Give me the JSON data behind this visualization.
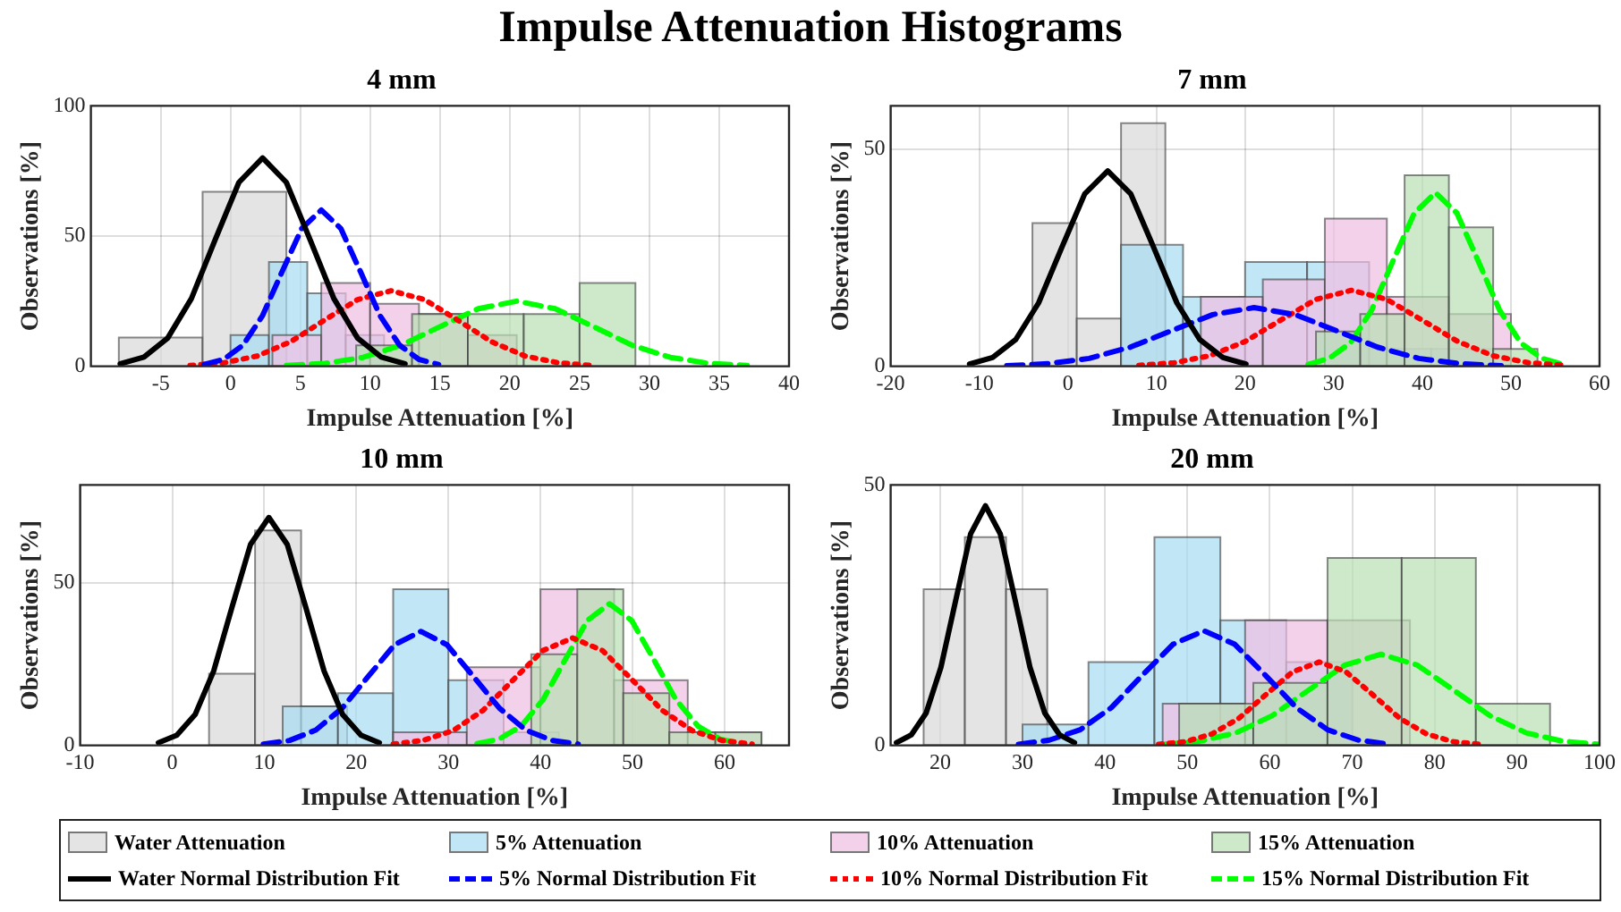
{
  "chart_data": [
    {
      "type": "histogram",
      "title": "4 mm",
      "xlabel": "Impulse Attenuation [%]",
      "ylabel": "Observations [%]",
      "annotations": [
        "Impulse Attenuation Histograms"
      ],
      "legend": "bottom",
      "grid": true,
      "xlim": [
        -10,
        40
      ],
      "xticks": [
        -5,
        0,
        5,
        10,
        15,
        20,
        25,
        30,
        35,
        40
      ],
      "ylim": [
        0,
        100
      ],
      "yticks": [
        0,
        50,
        100
      ],
      "series": [
        {
          "name": "Water Attenuation",
          "type": "histogram",
          "color": "#d9d9d9",
          "bins": [
            -8,
            -2,
            4
          ],
          "values": [
            11,
            67
          ]
        },
        {
          "name": "5% Attenuation",
          "type": "histogram",
          "color": "#a6dcf2",
          "bins": [
            0,
            2.75,
            5.5,
            8.25,
            11
          ],
          "values": [
            12,
            40,
            28,
            12
          ]
        },
        {
          "name": "10% Attenuation",
          "type": "histogram",
          "color": "#f0bde3",
          "bins": [
            3,
            6.5,
            10,
            13.5,
            17,
            20.5
          ],
          "values": [
            12,
            32,
            24,
            20,
            12
          ]
        },
        {
          "name": "15% Attenuation",
          "type": "histogram",
          "color": "#b8e0b4",
          "bins": [
            9,
            13,
            17,
            21,
            25,
            29
          ],
          "values": [
            8,
            20,
            20,
            20,
            32
          ]
        },
        {
          "name": "Water Normal Distribution Fit",
          "type": "line",
          "color": "#000000",
          "line_style": "solid",
          "x": [
            -7.9,
            -6.2,
            -4.5,
            -2.8,
            -1.1,
            0.6,
            2.3,
            4,
            5.7,
            7.4,
            9.1,
            10.8,
            12.5
          ],
          "values": [
            0.9,
            3.5,
            10.8,
            26,
            48.6,
            70.6,
            80,
            70.6,
            48.6,
            26,
            10.8,
            3.5,
            0.9
          ]
        },
        {
          "name": "5% Normal Distribution Fit",
          "type": "line",
          "color": "#0000ff",
          "line_style": "dashed",
          "x": [
            -1.9,
            -0.5,
            0.9,
            2.3,
            3.7,
            5.1,
            6.5,
            7.9,
            9.3,
            10.7,
            12.1,
            13.5,
            14.9
          ],
          "values": [
            0.7,
            2.6,
            8.1,
            19.5,
            36.4,
            52.9,
            60,
            52.9,
            36.4,
            19.5,
            8.1,
            2.6,
            0.7
          ]
        },
        {
          "name": "10% Normal Distribution Fit",
          "type": "line",
          "color": "#ff0000",
          "line_style": "dotted",
          "x": [
            -2.9,
            -0.5,
            1.9,
            4.3,
            6.7,
            9.1,
            11.5,
            13.9,
            16.3,
            18.7,
            21.1,
            23.5,
            25.9
          ],
          "values": [
            0.3,
            1.3,
            3.9,
            9.4,
            17.6,
            25.6,
            29,
            25.6,
            17.6,
            9.4,
            3.9,
            1.3,
            0.3
          ]
        },
        {
          "name": "15% Normal Distribution Fit",
          "type": "line",
          "color": "#00ff00",
          "line_style": "dashed",
          "x": [
            4,
            6.75,
            9.5,
            12.25,
            15,
            17.75,
            20.5,
            23.25,
            26,
            28.75,
            31.5,
            34.25,
            37
          ],
          "values": [
            0.3,
            1.1,
            3.4,
            8.1,
            15.2,
            22.1,
            25,
            22.1,
            15.2,
            8.1,
            3.4,
            1.1,
            0.3
          ]
        }
      ]
    },
    {
      "type": "histogram",
      "title": "7 mm",
      "xlabel": "Impulse Attenuation [%]",
      "ylabel": "Observations [%]",
      "grid": true,
      "xlim": [
        -20,
        60
      ],
      "xticks": [
        -20,
        -10,
        0,
        10,
        20,
        30,
        40,
        50,
        60
      ],
      "ylim": [
        0,
        60
      ],
      "yticks": [
        0,
        50
      ],
      "series": [
        {
          "type": "histogram",
          "color": "#d9d9d9",
          "bins": [
            -4,
            1,
            6,
            11
          ],
          "values": [
            33,
            11,
            56
          ]
        },
        {
          "type": "histogram",
          "color": "#a6dcf2",
          "bins": [
            6,
            13,
            20,
            27,
            34,
            41,
            48
          ],
          "values": [
            28,
            16,
            24,
            24,
            4,
            4
          ]
        },
        {
          "type": "histogram",
          "color": "#f0bde3",
          "bins": [
            15,
            22,
            29,
            36,
            43,
            50
          ],
          "values": [
            16,
            20,
            34,
            16,
            12
          ]
        },
        {
          "type": "histogram",
          "color": "#b8e0b4",
          "bins": [
            28,
            33,
            38,
            43,
            48,
            53
          ],
          "values": [
            8,
            12,
            44,
            32,
            4
          ]
        },
        {
          "type": "line",
          "color": "#000000",
          "line_style": "solid",
          "x": [
            -11.1,
            -8.5,
            -5.9,
            -3.3,
            -0.7,
            1.9,
            4.5,
            7.1,
            9.7,
            12.3,
            14.9,
            17.5,
            20.1
          ],
          "values": [
            0.5,
            2,
            6.1,
            14.6,
            27.3,
            39.7,
            45,
            39.7,
            27.3,
            14.6,
            6.1,
            2,
            0.5
          ]
        },
        {
          "type": "line",
          "color": "#0000ff",
          "line_style": "dashed",
          "x": [
            -6.9,
            -2.25,
            2.4,
            7.05,
            11.7,
            16.35,
            21,
            25.65,
            30.3,
            34.95,
            39.6,
            44.25,
            48.9
          ],
          "values": [
            0.1,
            0.6,
            1.8,
            4.4,
            8.2,
            11.9,
            13.5,
            11.9,
            8.2,
            4.4,
            1.8,
            0.6,
            0.1
          ]
        },
        {
          "type": "line",
          "color": "#ff0000",
          "line_style": "dotted",
          "x": [
            8,
            12,
            16,
            20,
            24,
            28,
            32,
            36,
            40,
            44,
            48,
            52,
            56
          ],
          "values": [
            0.2,
            0.8,
            2.4,
            5.7,
            10.6,
            15.4,
            17.5,
            15.4,
            10.6,
            5.7,
            2.4,
            0.8,
            0.2
          ]
        },
        {
          "type": "line",
          "color": "#00ff00",
          "line_style": "dashed",
          "x": [
            27.1,
            29.5,
            31.9,
            34.3,
            36.7,
            39.1,
            41.5,
            43.9,
            46.3,
            48.7,
            51.1,
            53.5,
            55.9
          ],
          "values": [
            0.4,
            1.8,
            5.4,
            13,
            24.3,
            35.3,
            40,
            35.3,
            24.3,
            13,
            5.4,
            1.8,
            0.4
          ]
        }
      ]
    },
    {
      "type": "histogram",
      "title": "10 mm",
      "xlabel": "Impulse Attenuation [%]",
      "ylabel": "Observations [%]",
      "grid": true,
      "xlim": [
        -10,
        67
      ],
      "xticks": [
        -10,
        0,
        10,
        20,
        30,
        40,
        50,
        60
      ],
      "ylim": [
        0,
        80
      ],
      "yticks": [
        0,
        50
      ],
      "series": [
        {
          "type": "histogram",
          "color": "#d9d9d9",
          "bins": [
            4,
            9,
            14,
            19
          ],
          "values": [
            22,
            66,
            12
          ]
        },
        {
          "type": "histogram",
          "color": "#a6dcf2",
          "bins": [
            12,
            18,
            24,
            30,
            36,
            42
          ],
          "values": [
            12,
            16,
            48,
            20,
            4
          ]
        },
        {
          "type": "histogram",
          "color": "#f0bde3",
          "bins": [
            24,
            32,
            40,
            48,
            56,
            64
          ],
          "values": [
            4,
            24,
            48,
            20,
            4
          ]
        },
        {
          "type": "histogram",
          "color": "#b8e0b4",
          "bins": [
            39,
            44,
            49,
            54,
            59,
            64
          ],
          "values": [
            28,
            48,
            16,
            4,
            4
          ]
        },
        {
          "type": "line",
          "color": "#000000",
          "line_style": "solid",
          "x": [
            -1.5,
            0.5,
            2.5,
            4.5,
            6.5,
            8.5,
            10.5,
            12.5,
            14.5,
            16.5,
            18.5,
            20.5,
            22.5
          ],
          "values": [
            0.8,
            3.1,
            9.5,
            22.8,
            42.5,
            61.7,
            70,
            61.7,
            42.5,
            22.8,
            9.5,
            3.1,
            0.8
          ]
        },
        {
          "type": "line",
          "color": "#0000ff",
          "line_style": "dashed",
          "x": [
            9.9,
            12.75,
            15.6,
            18.45,
            21.3,
            24.15,
            27,
            29.85,
            32.7,
            35.55,
            38.4,
            41.25,
            44.1
          ],
          "values": [
            0.4,
            1.5,
            4.7,
            11.4,
            21.2,
            30.9,
            35,
            30.9,
            21.2,
            11.4,
            4.7,
            1.5,
            0.4
          ]
        },
        {
          "type": "line",
          "color": "#ff0000",
          "line_style": "dotted",
          "x": [
            24,
            27.25,
            30.5,
            33.75,
            37,
            40.25,
            43.5,
            46.75,
            50,
            53.25,
            56.5,
            59.75,
            63
          ],
          "values": [
            0.4,
            1.5,
            4.5,
            10.7,
            20,
            29.1,
            33,
            29.1,
            20,
            10.7,
            4.5,
            1.5,
            0.4
          ]
        },
        {
          "type": "line",
          "color": "#00ff00",
          "line_style": "dashed",
          "x": [
            33.1,
            35.5,
            37.9,
            40.3,
            42.7,
            45.1,
            47.5,
            49.9,
            52.3,
            54.7,
            57.1,
            59.5,
            61.9
          ],
          "values": [
            0.5,
            1.9,
            5.9,
            14.1,
            26.4,
            38.4,
            43.5,
            38.4,
            26.4,
            14.1,
            5.9,
            1.9,
            0.5
          ]
        }
      ]
    },
    {
      "type": "histogram",
      "title": "20 mm",
      "xlabel": "Impulse Attenuation [%]",
      "ylabel": "Observations [%]",
      "grid": true,
      "xlim": [
        14,
        100
      ],
      "xticks": [
        20,
        30,
        40,
        50,
        60,
        70,
        80,
        90,
        100
      ],
      "ylim": [
        0,
        50
      ],
      "yticks": [
        0,
        50
      ],
      "series": [
        {
          "type": "histogram",
          "color": "#d9d9d9",
          "bins": [
            18,
            23,
            28,
            33
          ],
          "values": [
            30,
            40,
            30
          ]
        },
        {
          "type": "histogram",
          "color": "#a6dcf2",
          "bins": [
            30,
            38,
            46,
            54,
            62,
            70
          ],
          "values": [
            4,
            16,
            40,
            24,
            16
          ]
        },
        {
          "type": "histogram",
          "color": "#f0bde3",
          "bins": [
            47,
            57,
            67,
            77
          ],
          "values": [
            8,
            24,
            24
          ]
        },
        {
          "type": "histogram",
          "color": "#b8e0b4",
          "bins": [
            49,
            58,
            67,
            76,
            85,
            94
          ],
          "values": [
            8,
            12,
            36,
            36,
            8
          ]
        },
        {
          "type": "line",
          "color": "#000000",
          "line_style": "solid",
          "x": [
            14.7,
            16.5,
            18.3,
            20.1,
            21.9,
            23.7,
            25.5,
            27.3,
            29.1,
            30.9,
            32.7,
            34.5,
            36.3
          ],
          "values": [
            0.5,
            2,
            6.2,
            15,
            27.9,
            40.6,
            46,
            40.6,
            27.9,
            15,
            6.2,
            2,
            0.5
          ]
        },
        {
          "type": "line",
          "color": "#0000ff",
          "line_style": "dashed",
          "x": [
            29.5,
            33.25,
            37,
            40.75,
            44.5,
            48.25,
            52,
            55.75,
            59.5,
            63.25,
            67,
            70.75,
            74.5
          ],
          "values": [
            0.2,
            1,
            3,
            7.2,
            13.4,
            19.4,
            22,
            19.4,
            13.4,
            7.2,
            3,
            1,
            0.2
          ]
        },
        {
          "type": "line",
          "color": "#ff0000",
          "line_style": "dotted",
          "x": [
            46.5,
            49.75,
            53,
            56.25,
            59.5,
            62.75,
            66,
            69.25,
            72.5,
            75.75,
            79,
            82.25,
            85.5
          ],
          "values": [
            0.2,
            0.7,
            2.2,
            5.2,
            9.7,
            14.1,
            16,
            14.1,
            9.7,
            5.2,
            2.2,
            0.7,
            0.2
          ]
        },
        {
          "type": "line",
          "color": "#00ff00",
          "line_style": "dashed",
          "x": [
            47.1,
            51.5,
            55.9,
            60.3,
            64.7,
            69.1,
            73.5,
            77.9,
            82.3,
            86.7,
            91.1,
            95.5,
            99.9
          ],
          "values": [
            0.2,
            0.8,
            2.4,
            5.7,
            10.6,
            15.4,
            17.5,
            15.4,
            10.6,
            5.7,
            2.4,
            0.8,
            0.2
          ]
        }
      ]
    }
  ]
}
